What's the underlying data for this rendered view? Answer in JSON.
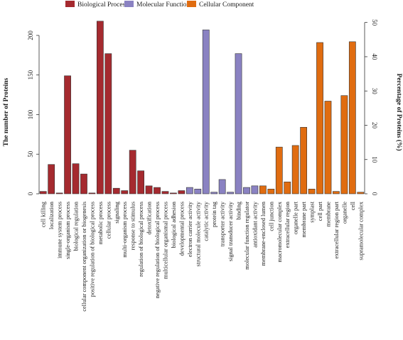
{
  "chart_data": {
    "type": "bar",
    "title": "",
    "ylabel": "The number of Proteins",
    "y2label": "Percentage of Proteins (%)",
    "ylim": [
      0,
      225
    ],
    "y2lim": [
      0,
      52
    ],
    "yticks": [
      0,
      50,
      100,
      150,
      200
    ],
    "y2ticks": [
      0,
      10,
      20,
      30,
      40,
      50
    ],
    "legend_position": "top",
    "series": [
      {
        "name": "Biological Process",
        "color": "#a52a2f",
        "categories": [
          "cell killing",
          "localization",
          "immune system process",
          "single-organism process",
          "biological regulation",
          "cellular component organization or biogenesis",
          "positive regulation of biological process",
          "metabolic process",
          "cellular process",
          "signaling",
          "multi-organism process",
          "response to stimulus",
          "regulation of biological process",
          "detoxification",
          "negative regulation of biological process",
          "multicellular organismal process",
          "biological adhesion",
          "developmental process"
        ],
        "values": [
          3,
          37,
          1,
          149,
          38,
          25,
          1,
          218,
          177,
          7,
          4,
          55,
          29,
          10,
          8,
          3,
          1,
          4
        ]
      },
      {
        "name": "Molecular Function",
        "color": "#8a82c2",
        "categories": [
          "electron carrier activity",
          "structural molecule activity",
          "catalytic activity",
          "protein tag",
          "transporter activity",
          "signal transducer activity",
          "binding",
          "molecular function regulator",
          "antioxidant activity"
        ],
        "values": [
          8,
          6,
          207,
          2,
          18,
          2,
          177,
          8,
          10
        ]
      },
      {
        "name": "Cellular Component",
        "color": "#e06c10",
        "categories": [
          "membrane-enclosed lumen",
          "cell junction",
          "macromolecular complex",
          "extracellular region",
          "organelle part",
          "membrane part",
          "symplast",
          "cell part",
          "membrane",
          "extracellular region part",
          "organelle",
          "cell",
          "supramolecular complex"
        ],
        "values": [
          10,
          6,
          59,
          15,
          61,
          84,
          6,
          191,
          117,
          3,
          124,
          192,
          2
        ]
      }
    ]
  }
}
